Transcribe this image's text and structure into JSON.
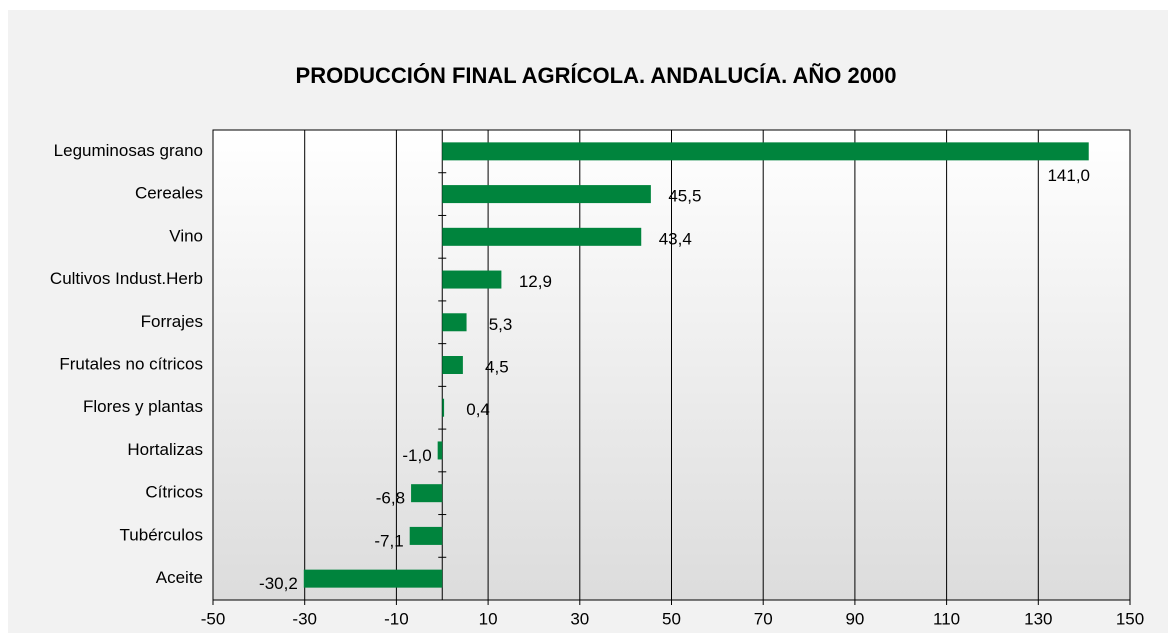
{
  "chart_data": {
    "type": "bar",
    "orientation": "horizontal",
    "title": "PRODUCCIÓN FINAL AGRÍCOLA. ANDALUCÍA. AÑO 2000",
    "categories": [
      "Leguminosas grano",
      "Cereales",
      "Vino",
      "Cultivos Indust.Herb",
      "Forrajes",
      "Frutales no cítricos",
      "Flores y plantas",
      "Hortalizas",
      "Cítricos",
      "Tubérculos",
      "Aceite"
    ],
    "values": [
      141.0,
      45.5,
      43.4,
      12.9,
      5.3,
      4.5,
      0.4,
      -1.0,
      -6.8,
      -7.1,
      -30.2
    ],
    "value_labels": [
      "141,0",
      "45,5",
      "43,4",
      "12,9",
      "5,3",
      "4,5",
      "0,4",
      "-1,0",
      "-6,8",
      "-7,1",
      "-30,2"
    ],
    "color": "#00843d",
    "xlim": [
      -50,
      150
    ],
    "xticks": [
      -50,
      -30,
      -10,
      10,
      30,
      50,
      70,
      90,
      110,
      130,
      150
    ],
    "grid": true
  }
}
